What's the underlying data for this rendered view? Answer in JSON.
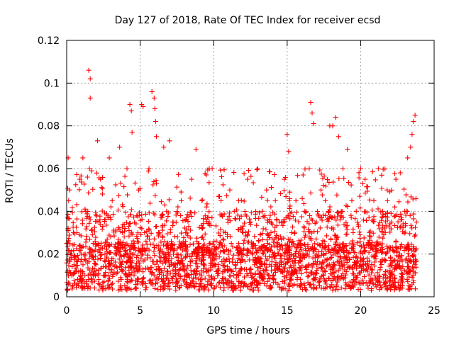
{
  "chart_data": {
    "type": "scatter",
    "title": "Day 127 of 2018, Rate Of TEC Index for receiver ecsd",
    "xlabel": "GPS time / hours",
    "ylabel": "ROTI / TECUs",
    "xlim": [
      0,
      24
    ],
    "ylim": [
      0,
      0.12
    ],
    "xticks": [
      0,
      5,
      10,
      15,
      20,
      25
    ],
    "xtick_labels": [
      "0",
      "5",
      "10",
      "15",
      "20",
      "25"
    ],
    "yticks": [
      0,
      0.02,
      0.04,
      0.06,
      0.08,
      0.1,
      0.12
    ],
    "ytick_labels": [
      "0",
      "0.02",
      "0.04",
      "0.06",
      "0.08",
      "0.1",
      "0.12"
    ],
    "grid": true,
    "marker": "+",
    "color": "#ff0000",
    "series": [
      {
        "name": "ROTI",
        "description_of_points": "dense cloud of ROTI samples, mostly 0.005-0.03 TECU/s, sampled over 0-24 h",
        "x": [
          0.05,
          0.1,
          0.2,
          0.3,
          0.5,
          0.7,
          0.9,
          1.1,
          1.3,
          1.5,
          1.6,
          1.6,
          1.55,
          1.8,
          2.1,
          2.2,
          2.3,
          2.6,
          2.9,
          3.1,
          3.4,
          3.6,
          3.8,
          4.1,
          4.3,
          4.4,
          4.45,
          4.6,
          4.9,
          5.1,
          5.2,
          5.3,
          5.6,
          5.8,
          5.95,
          6.0,
          6.05,
          6.1,
          6.3,
          6.6,
          6.8,
          7.0,
          7.2,
          7.5,
          7.8,
          8.1,
          8.5,
          8.8,
          9.0,
          9.2,
          9.5,
          9.7,
          9.9,
          10.2,
          10.5,
          10.8,
          11.1,
          11.4,
          11.7,
          12.0,
          12.3,
          12.7,
          13.0,
          13.3,
          13.6,
          13.9,
          14.2,
          14.5,
          14.8,
          15.0,
          15.1,
          15.3,
          15.6,
          15.9,
          16.2,
          16.5,
          16.6,
          16.7,
          16.8,
          17.0,
          17.3,
          17.6,
          17.9,
          18.1,
          18.3,
          18.5,
          18.8,
          19.1,
          19.4,
          19.7,
          20.0,
          20.3,
          20.6,
          20.9,
          21.2,
          21.5,
          21.8,
          22.1,
          22.4,
          22.7,
          23.0,
          23.2,
          23.4,
          23.5,
          23.6,
          23.7,
          23.8
        ],
        "y": [
          0.012,
          0.065,
          0.05,
          0.02,
          0.015,
          0.03,
          0.055,
          0.065,
          0.04,
          0.106,
          0.102,
          0.093,
          0.06,
          0.025,
          0.073,
          0.035,
          0.055,
          0.02,
          0.065,
          0.045,
          0.02,
          0.07,
          0.03,
          0.06,
          0.09,
          0.087,
          0.077,
          0.025,
          0.05,
          0.09,
          0.089,
          0.03,
          0.06,
          0.096,
          0.093,
          0.088,
          0.082,
          0.075,
          0.03,
          0.07,
          0.04,
          0.073,
          0.035,
          0.02,
          0.045,
          0.03,
          0.055,
          0.069,
          0.025,
          0.045,
          0.057,
          0.035,
          0.06,
          0.02,
          0.045,
          0.03,
          0.05,
          0.04,
          0.045,
          0.03,
          0.055,
          0.025,
          0.06,
          0.04,
          0.05,
          0.03,
          0.045,
          0.035,
          0.055,
          0.076,
          0.068,
          0.03,
          0.045,
          0.025,
          0.04,
          0.06,
          0.091,
          0.086,
          0.081,
          0.035,
          0.05,
          0.045,
          0.08,
          0.08,
          0.084,
          0.075,
          0.06,
          0.069,
          0.045,
          0.04,
          0.06,
          0.055,
          0.03,
          0.045,
          0.06,
          0.04,
          0.05,
          0.035,
          0.055,
          0.058,
          0.04,
          0.065,
          0.07,
          0.076,
          0.082,
          0.085,
          0.035
        ]
      }
    ]
  }
}
